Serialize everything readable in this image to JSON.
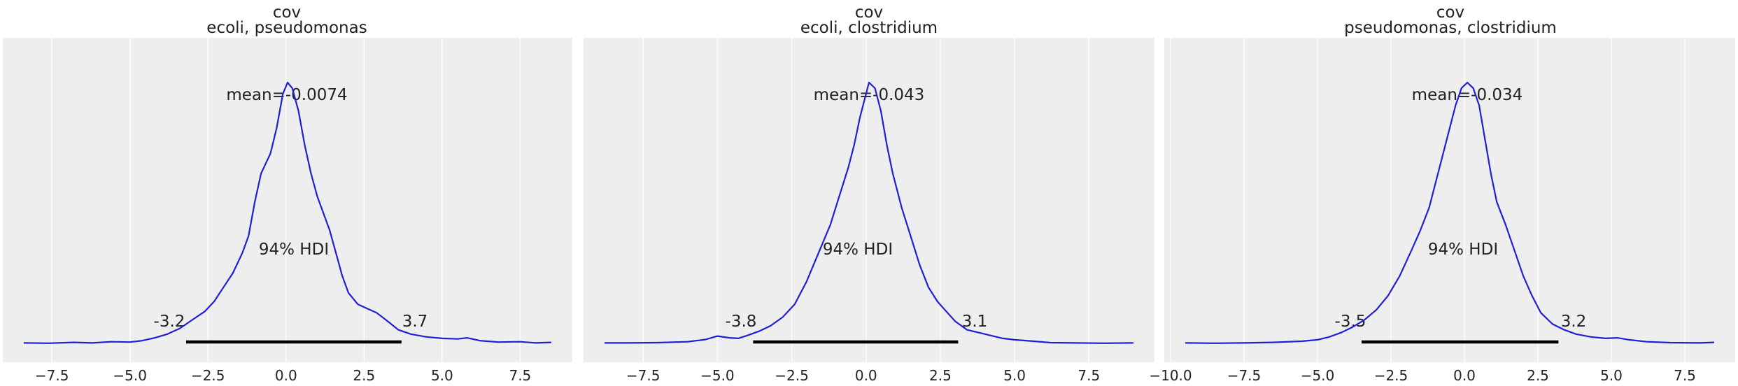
{
  "chart_data": [
    {
      "type": "density",
      "title": "cov",
      "subtitle": "ecoli, pseudomonas",
      "xlim": [
        -8.4,
        8.5
      ],
      "xticks": [
        -7.5,
        -5.0,
        -2.5,
        0.0,
        2.5,
        5.0,
        7.5
      ],
      "xtick_labels": [
        "−7.5",
        "−5.0",
        "−2.5",
        "0.0",
        "2.5",
        "5.0",
        "7.5"
      ],
      "grid": true,
      "mean_label": "mean=-0.0074",
      "hdi_label": "94% HDI",
      "hdi": [
        -3.2,
        3.7
      ],
      "hdi_low_label": "-3.2",
      "hdi_high_label": "3.7",
      "line_color": "#1f1fd6",
      "curve": [
        [
          -8.4,
          0.004
        ],
        [
          -7.6,
          0.003
        ],
        [
          -6.8,
          0.006
        ],
        [
          -6.2,
          0.004
        ],
        [
          -5.6,
          0.008
        ],
        [
          -5.0,
          0.007
        ],
        [
          -4.6,
          0.012
        ],
        [
          -4.2,
          0.022
        ],
        [
          -3.8,
          0.035
        ],
        [
          -3.4,
          0.055
        ],
        [
          -3.0,
          0.085
        ],
        [
          -2.6,
          0.115
        ],
        [
          -2.3,
          0.15
        ],
        [
          -2.0,
          0.2
        ],
        [
          -1.7,
          0.25
        ],
        [
          -1.4,
          0.32
        ],
        [
          -1.2,
          0.38
        ],
        [
          -1.0,
          0.5
        ],
        [
          -0.8,
          0.6
        ],
        [
          -0.5,
          0.67
        ],
        [
          -0.3,
          0.76
        ],
        [
          -0.1,
          0.88
        ],
        [
          0.05,
          0.92
        ],
        [
          0.2,
          0.9
        ],
        [
          0.4,
          0.82
        ],
        [
          0.6,
          0.7
        ],
        [
          0.8,
          0.6
        ],
        [
          1.0,
          0.52
        ],
        [
          1.2,
          0.46
        ],
        [
          1.4,
          0.4
        ],
        [
          1.6,
          0.32
        ],
        [
          1.8,
          0.24
        ],
        [
          2.0,
          0.18
        ],
        [
          2.3,
          0.14
        ],
        [
          2.6,
          0.125
        ],
        [
          2.9,
          0.11
        ],
        [
          3.2,
          0.085
        ],
        [
          3.6,
          0.05
        ],
        [
          4.0,
          0.035
        ],
        [
          4.5,
          0.025
        ],
        [
          5.0,
          0.02
        ],
        [
          5.5,
          0.018
        ],
        [
          5.8,
          0.022
        ],
        [
          6.2,
          0.012
        ],
        [
          6.8,
          0.007
        ],
        [
          7.5,
          0.008
        ],
        [
          8.0,
          0.004
        ],
        [
          8.5,
          0.006
        ]
      ]
    },
    {
      "type": "density",
      "title": "cov",
      "subtitle": "ecoli, clostridium",
      "xlim": [
        -8.8,
        9.0
      ],
      "xticks": [
        -7.5,
        -5.0,
        -2.5,
        0.0,
        2.5,
        5.0,
        7.5
      ],
      "xtick_labels": [
        "−7.5",
        "−5.0",
        "−2.5",
        "0.0",
        "2.5",
        "5.0",
        "7.5"
      ],
      "grid": true,
      "mean_label": "mean=-0.043",
      "hdi_label": "94% HDI",
      "hdi": [
        -3.8,
        3.1
      ],
      "hdi_low_label": "-3.8",
      "hdi_high_label": "3.1",
      "line_color": "#1f1fd6",
      "curve": [
        [
          -8.8,
          0.004
        ],
        [
          -8.0,
          0.004
        ],
        [
          -7.0,
          0.005
        ],
        [
          -6.0,
          0.008
        ],
        [
          -5.4,
          0.016
        ],
        [
          -5.0,
          0.028
        ],
        [
          -4.6,
          0.022
        ],
        [
          -4.3,
          0.02
        ],
        [
          -4.0,
          0.03
        ],
        [
          -3.6,
          0.045
        ],
        [
          -3.2,
          0.065
        ],
        [
          -2.8,
          0.095
        ],
        [
          -2.4,
          0.14
        ],
        [
          -2.0,
          0.22
        ],
        [
          -1.6,
          0.32
        ],
        [
          -1.2,
          0.42
        ],
        [
          -0.9,
          0.52
        ],
        [
          -0.6,
          0.62
        ],
        [
          -0.4,
          0.7
        ],
        [
          -0.2,
          0.8
        ],
        [
          0.0,
          0.88
        ],
        [
          0.1,
          0.92
        ],
        [
          0.3,
          0.9
        ],
        [
          0.5,
          0.82
        ],
        [
          0.7,
          0.7
        ],
        [
          0.9,
          0.6
        ],
        [
          1.2,
          0.48
        ],
        [
          1.5,
          0.38
        ],
        [
          1.8,
          0.28
        ],
        [
          2.1,
          0.2
        ],
        [
          2.4,
          0.15
        ],
        [
          2.7,
          0.115
        ],
        [
          3.0,
          0.08
        ],
        [
          3.4,
          0.05
        ],
        [
          3.8,
          0.04
        ],
        [
          4.2,
          0.03
        ],
        [
          4.6,
          0.02
        ],
        [
          5.0,
          0.015
        ],
        [
          5.6,
          0.01
        ],
        [
          6.2,
          0.005
        ],
        [
          7.0,
          0.004
        ],
        [
          8.0,
          0.003
        ],
        [
          9.0,
          0.004
        ]
      ]
    },
    {
      "type": "density",
      "title": "cov",
      "subtitle": "pseudomonas, clostridium",
      "xlim": [
        -9.5,
        8.5
      ],
      "xticks": [
        -10.0,
        -7.5,
        -5.0,
        -2.5,
        0.0,
        2.5,
        5.0,
        7.5
      ],
      "xtick_labels": [
        "−10.0",
        "−7.5",
        "−5.0",
        "−2.5",
        "0.0",
        "2.5",
        "5.0",
        "7.5"
      ],
      "grid": true,
      "mean_label": "mean=-0.034",
      "hdi_label": "94% HDI",
      "hdi": [
        -3.5,
        3.2
      ],
      "hdi_low_label": "-3.5",
      "hdi_high_label": "3.2",
      "line_color": "#1f1fd6",
      "curve": [
        [
          -9.5,
          0.004
        ],
        [
          -8.5,
          0.003
        ],
        [
          -7.5,
          0.004
        ],
        [
          -6.5,
          0.006
        ],
        [
          -5.5,
          0.01
        ],
        [
          -5.0,
          0.015
        ],
        [
          -4.6,
          0.025
        ],
        [
          -4.2,
          0.04
        ],
        [
          -3.8,
          0.06
        ],
        [
          -3.4,
          0.085
        ],
        [
          -3.0,
          0.12
        ],
        [
          -2.6,
          0.17
        ],
        [
          -2.2,
          0.24
        ],
        [
          -1.8,
          0.33
        ],
        [
          -1.5,
          0.4
        ],
        [
          -1.2,
          0.48
        ],
        [
          -0.9,
          0.6
        ],
        [
          -0.6,
          0.72
        ],
        [
          -0.3,
          0.84
        ],
        [
          -0.1,
          0.9
        ],
        [
          0.1,
          0.92
        ],
        [
          0.3,
          0.9
        ],
        [
          0.5,
          0.84
        ],
        [
          0.7,
          0.72
        ],
        [
          0.9,
          0.6
        ],
        [
          1.1,
          0.5
        ],
        [
          1.4,
          0.42
        ],
        [
          1.7,
          0.33
        ],
        [
          2.0,
          0.24
        ],
        [
          2.3,
          0.17
        ],
        [
          2.6,
          0.11
        ],
        [
          3.0,
          0.07
        ],
        [
          3.4,
          0.05
        ],
        [
          3.8,
          0.035
        ],
        [
          4.3,
          0.025
        ],
        [
          4.8,
          0.02
        ],
        [
          5.2,
          0.022
        ],
        [
          5.6,
          0.015
        ],
        [
          6.2,
          0.008
        ],
        [
          7.0,
          0.005
        ],
        [
          8.0,
          0.004
        ],
        [
          8.5,
          0.006
        ]
      ]
    }
  ]
}
